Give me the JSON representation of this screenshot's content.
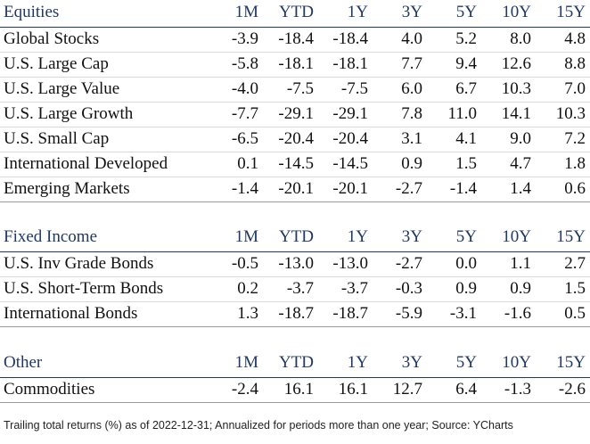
{
  "columns": [
    "1M",
    "YTD",
    "1Y",
    "3Y",
    "5Y",
    "10Y",
    "15Y"
  ],
  "sections": [
    {
      "title": "Equities",
      "rows": [
        {
          "label": "Global Stocks",
          "values": [
            "-3.9",
            "-18.4",
            "-18.4",
            "4.0",
            "5.2",
            "8.0",
            "4.8"
          ]
        },
        {
          "label": "U.S. Large Cap",
          "values": [
            "-5.8",
            "-18.1",
            "-18.1",
            "7.7",
            "9.4",
            "12.6",
            "8.8"
          ]
        },
        {
          "label": "U.S. Large Value",
          "values": [
            "-4.0",
            "-7.5",
            "-7.5",
            "6.0",
            "6.7",
            "10.3",
            "7.0"
          ]
        },
        {
          "label": "U.S. Large Growth",
          "values": [
            "-7.7",
            "-29.1",
            "-29.1",
            "7.8",
            "11.0",
            "14.1",
            "10.3"
          ]
        },
        {
          "label": "U.S. Small Cap",
          "values": [
            "-6.5",
            "-20.4",
            "-20.4",
            "3.1",
            "4.1",
            "9.0",
            "7.2"
          ]
        },
        {
          "label": "International Developed",
          "values": [
            "0.1",
            "-14.5",
            "-14.5",
            "0.9",
            "1.5",
            "4.7",
            "1.8"
          ]
        },
        {
          "label": "Emerging Markets",
          "values": [
            "-1.4",
            "-20.1",
            "-20.1",
            "-2.7",
            "-1.4",
            "1.4",
            "0.6"
          ]
        }
      ]
    },
    {
      "title": "Fixed Income",
      "rows": [
        {
          "label": "U.S. Inv Grade Bonds",
          "values": [
            "-0.5",
            "-13.0",
            "-13.0",
            "-2.7",
            "0.0",
            "1.1",
            "2.7"
          ]
        },
        {
          "label": "U.S. Short-Term Bonds",
          "values": [
            "0.2",
            "-3.7",
            "-3.7",
            "-0.3",
            "0.9",
            "0.9",
            "1.5"
          ]
        },
        {
          "label": "International Bonds",
          "values": [
            "1.3",
            "-18.7",
            "-18.7",
            "-5.9",
            "-3.1",
            "-1.6",
            "0.5"
          ]
        }
      ]
    },
    {
      "title": "Other",
      "rows": [
        {
          "label": "Commodities",
          "values": [
            "-2.4",
            "16.1",
            "16.1",
            "12.7",
            "6.4",
            "-1.3",
            "-2.6"
          ]
        }
      ]
    }
  ],
  "footnote": "Trailing total returns (%) as of 2022-12-31; Annualized for periods more than one year; Source: YCharts",
  "colors": {
    "header_text": "#1f3864",
    "rule": "#1f3864"
  }
}
